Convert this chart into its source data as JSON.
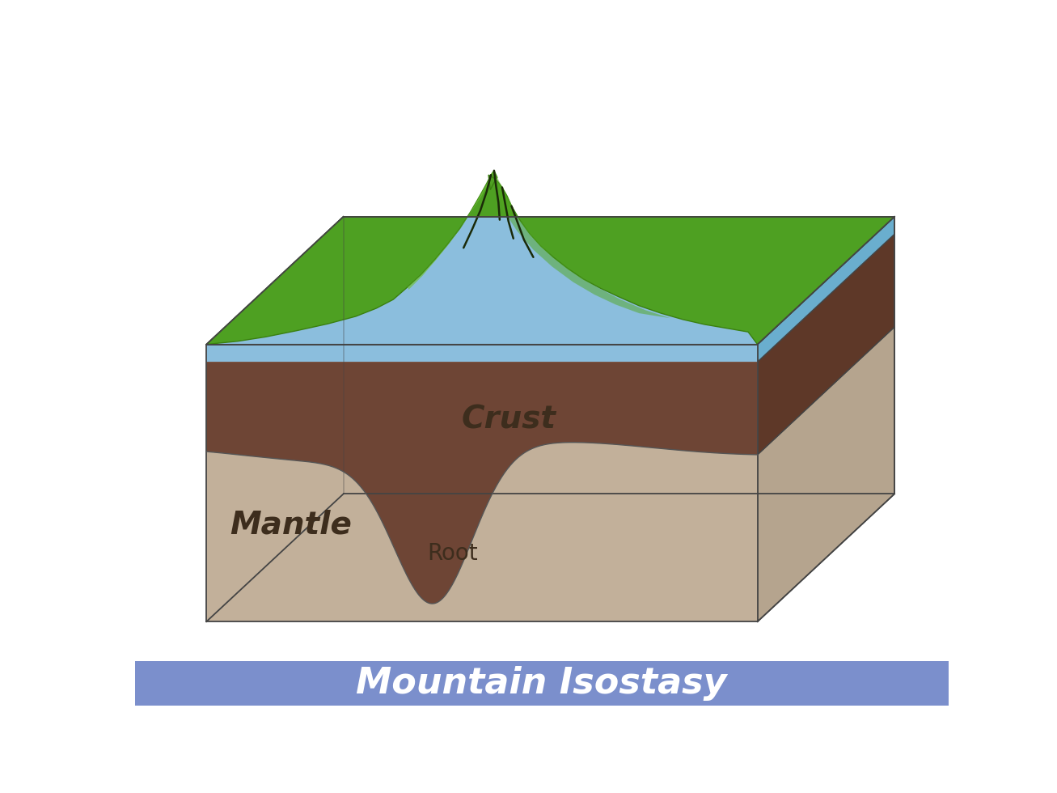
{
  "title": "Mountain Isostasy",
  "title_color": "#ffffff",
  "title_bg_color": "#7b8fcc",
  "bg_color": "#ffffff",
  "colors": {
    "water_top": "#8bbedd",
    "water_top_light": "#a0ccdd",
    "water_right": "#6aaece",
    "mantle_front": "#c2b09a",
    "mantle_right": "#b5a48e",
    "mantle_bottom": "#c2b09a",
    "crust_front": "#6e4535",
    "crust_right": "#5e3828",
    "mountain_green": "#4ea022",
    "mountain_light": "#6ec035",
    "mountain_dark": "#3a8010",
    "ravine": "#1a2a08",
    "outline": "#444444",
    "label_crust": "#3d2d1d",
    "label_mantle": "#3d2d1d",
    "label_root": "#3d2d1d"
  },
  "labels": {
    "crust": "Crust",
    "mantle": "Mantle",
    "root": "Root"
  },
  "block": {
    "fx0": 115,
    "fx1": 1000,
    "fy0": 400,
    "fy1": 845,
    "ox": 220,
    "oy": -205,
    "water_thickness": 28
  }
}
